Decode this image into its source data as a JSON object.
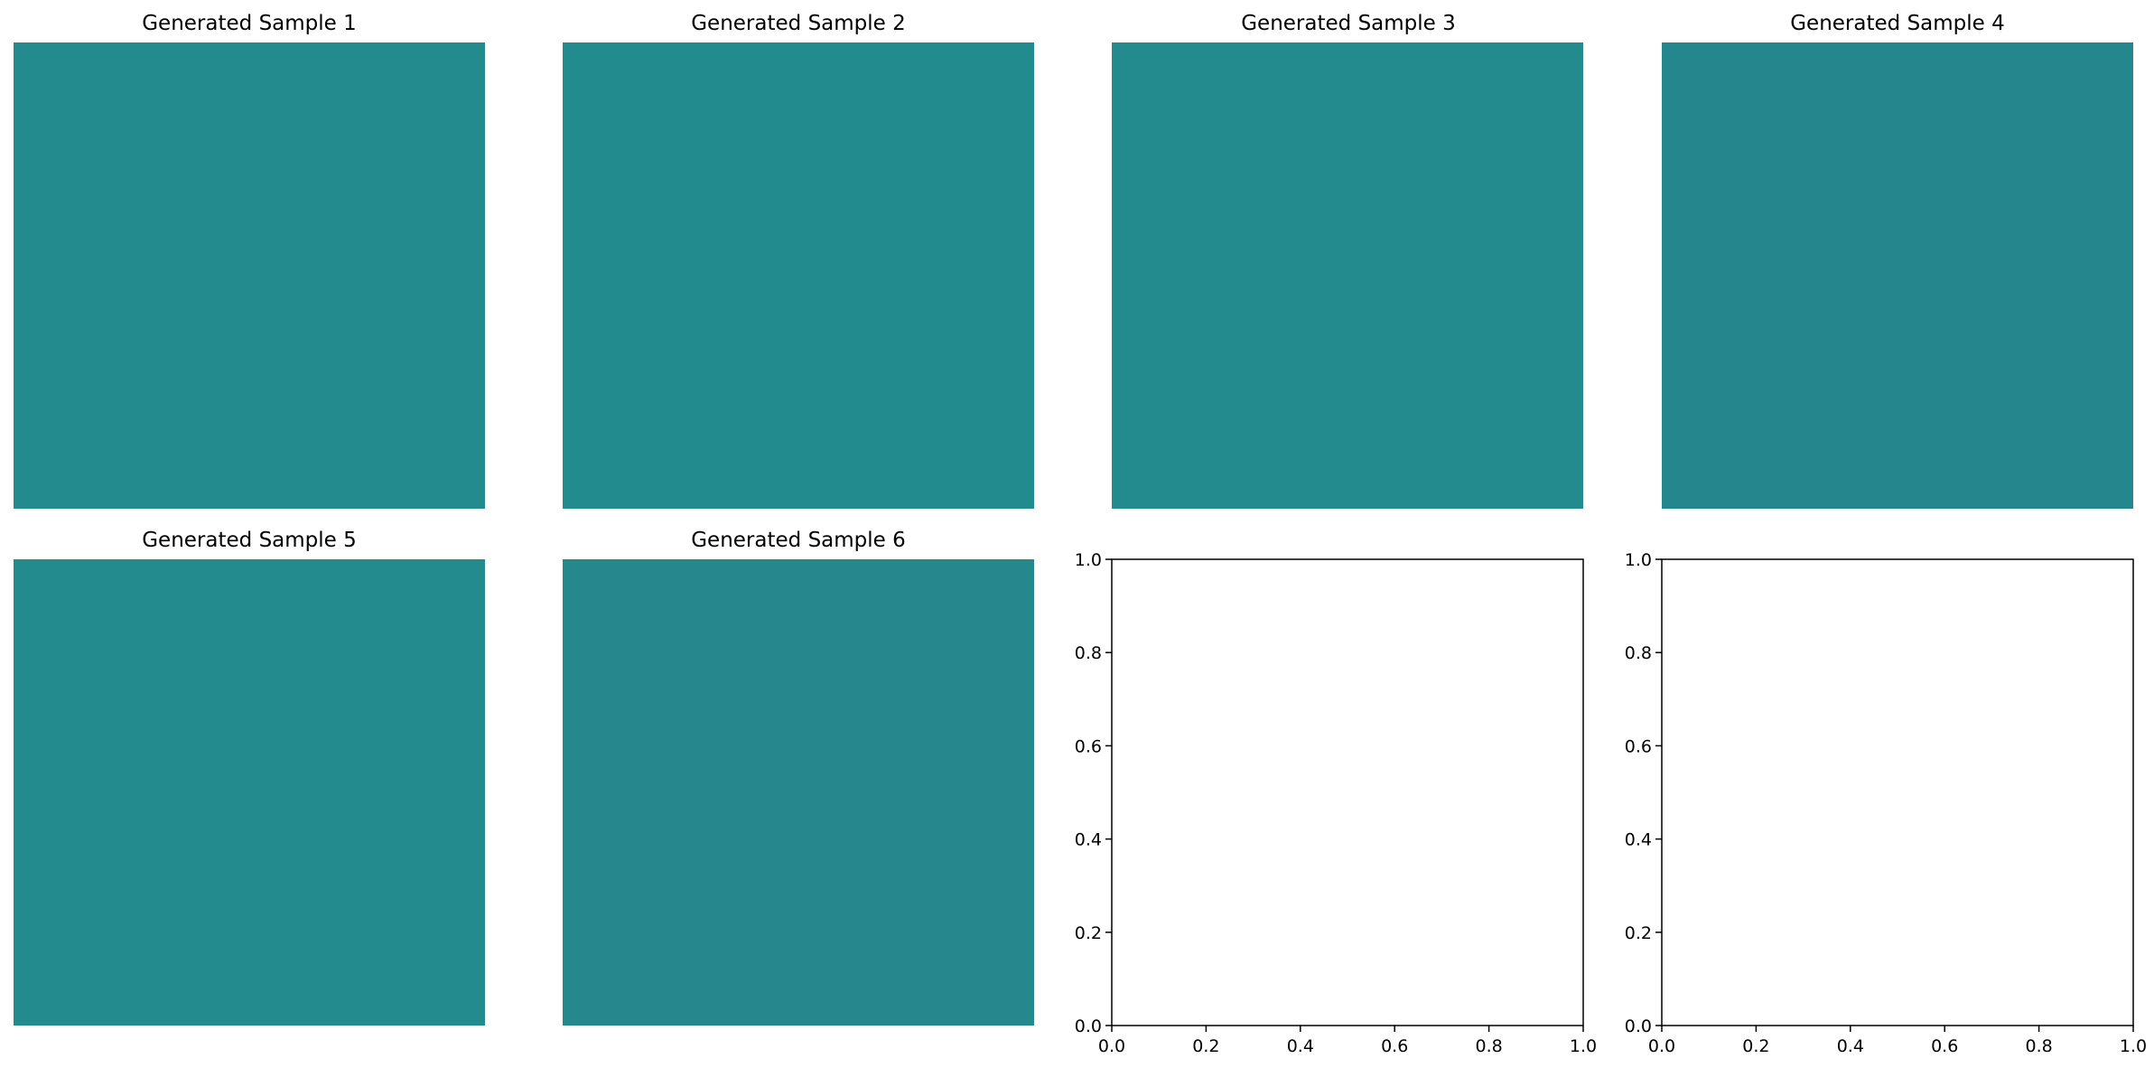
{
  "chart_data": [
    {
      "type": "heatmap",
      "title": "Generated Sample 1",
      "base_color": "#238a8d",
      "axis": "off"
    },
    {
      "type": "heatmap",
      "title": "Generated Sample 2",
      "base_color": "#228b8d",
      "axis": "off"
    },
    {
      "type": "heatmap",
      "title": "Generated Sample 3",
      "base_color": "#238a8d",
      "axis": "off"
    },
    {
      "type": "heatmap",
      "title": "Generated Sample 4",
      "base_color": "#24878e",
      "axis": "off"
    },
    {
      "type": "heatmap",
      "title": "Generated Sample 5",
      "base_color": "#238a8d",
      "axis": "off"
    },
    {
      "type": "heatmap",
      "title": "Generated Sample 6",
      "base_color": "#24888d",
      "axis": "off"
    },
    {
      "type": "scatter",
      "title": "",
      "series": [],
      "xlim": [
        0,
        1
      ],
      "ylim": [
        0,
        1
      ],
      "xticks": [
        0,
        0.2,
        0.4,
        0.6,
        0.8,
        1
      ],
      "yticks": [
        0,
        0.2,
        0.4,
        0.6,
        0.8,
        1
      ],
      "xtick_labels": [
        "0.0",
        "0.2",
        "0.4",
        "0.6",
        "0.8",
        "1.0"
      ],
      "ytick_labels": [
        "0.0",
        "0.2",
        "0.4",
        "0.6",
        "0.8",
        "1.0"
      ],
      "axis": "on",
      "grid": false
    },
    {
      "type": "scatter",
      "title": "",
      "series": [],
      "xlim": [
        0,
        1
      ],
      "ylim": [
        0,
        1
      ],
      "xticks": [
        0,
        0.2,
        0.4,
        0.6,
        0.8,
        1
      ],
      "yticks": [
        0,
        0.2,
        0.4,
        0.6,
        0.8,
        1
      ],
      "xtick_labels": [
        "0.0",
        "0.2",
        "0.4",
        "0.6",
        "0.8",
        "1.0"
      ],
      "ytick_labels": [
        "0.0",
        "0.2",
        "0.4",
        "0.6",
        "0.8",
        "1.0"
      ],
      "axis": "on",
      "grid": false
    }
  ]
}
